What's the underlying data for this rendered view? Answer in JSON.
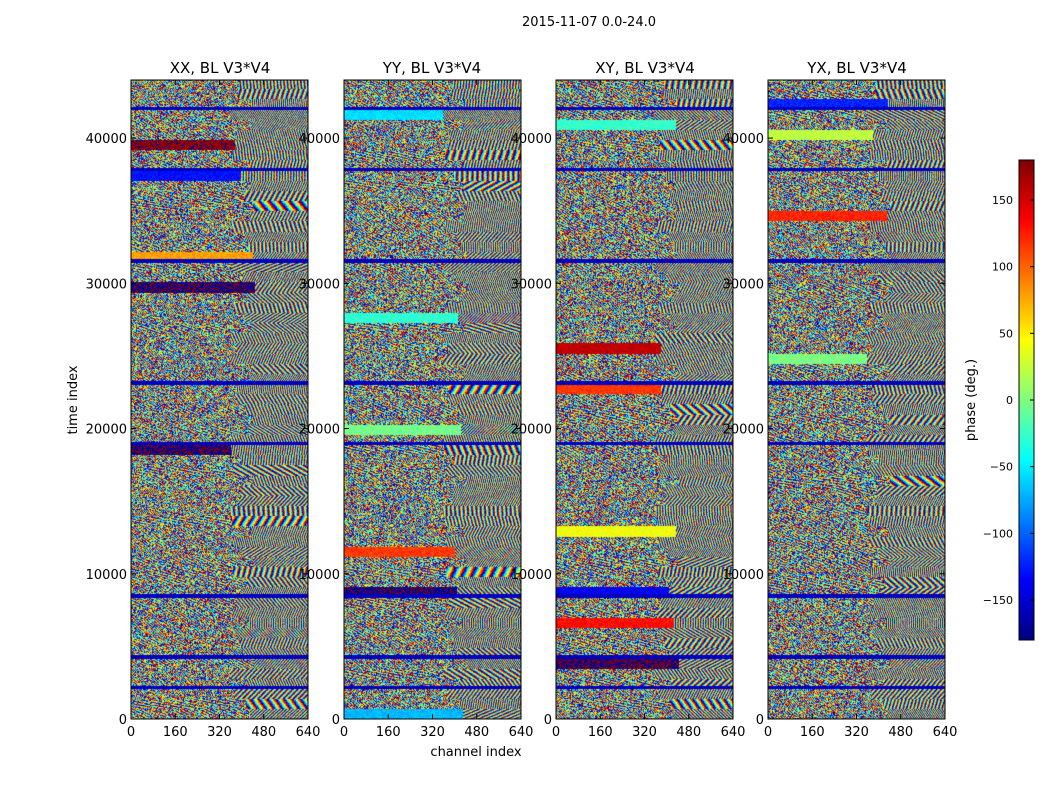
{
  "figure": {
    "suptitle": "2015-11-07 0.0-24.0",
    "xlabel": "channel index",
    "ylabel": "time index"
  },
  "colorbar": {
    "label": "phase (deg.)",
    "vmin": -180,
    "vmax": 180,
    "ticks": [
      150,
      100,
      50,
      0,
      -50,
      -100,
      -150
    ],
    "tick_labels": [
      "150",
      "100",
      "50",
      "0",
      "−50",
      "−100",
      "−150"
    ],
    "colormap": "jet"
  },
  "chart_data": {
    "type": "heatmap",
    "description_type": "waterfall phase plot",
    "xlim": [
      0,
      640
    ],
    "ylim": [
      0,
      44000
    ],
    "xticks": [
      0,
      160,
      320,
      480,
      640
    ],
    "yticks": [
      0,
      10000,
      20000,
      30000,
      40000
    ],
    "panels": [
      {
        "title": "XX, BL V3*V4",
        "key": "xx"
      },
      {
        "title": "YY, BL V3*V4",
        "key": "yy"
      },
      {
        "title": "XY, BL V3*V4",
        "key": "xy"
      },
      {
        "title": "YX, BL V3*V4",
        "key": "yx"
      }
    ],
    "z_unit": "phase (deg.)",
    "z_range": [
      -180,
      180
    ]
  },
  "colors": {
    "jet_dark_blue": "#00007f",
    "jet_blue": "#0000ff",
    "jet_cyan": "#00ffff",
    "jet_green": "#7fff7f",
    "jet_yellow": "#ffff00",
    "jet_red": "#ff0000",
    "jet_dark_red": "#7f0000",
    "axis": "#000000",
    "background": "#ffffff"
  }
}
